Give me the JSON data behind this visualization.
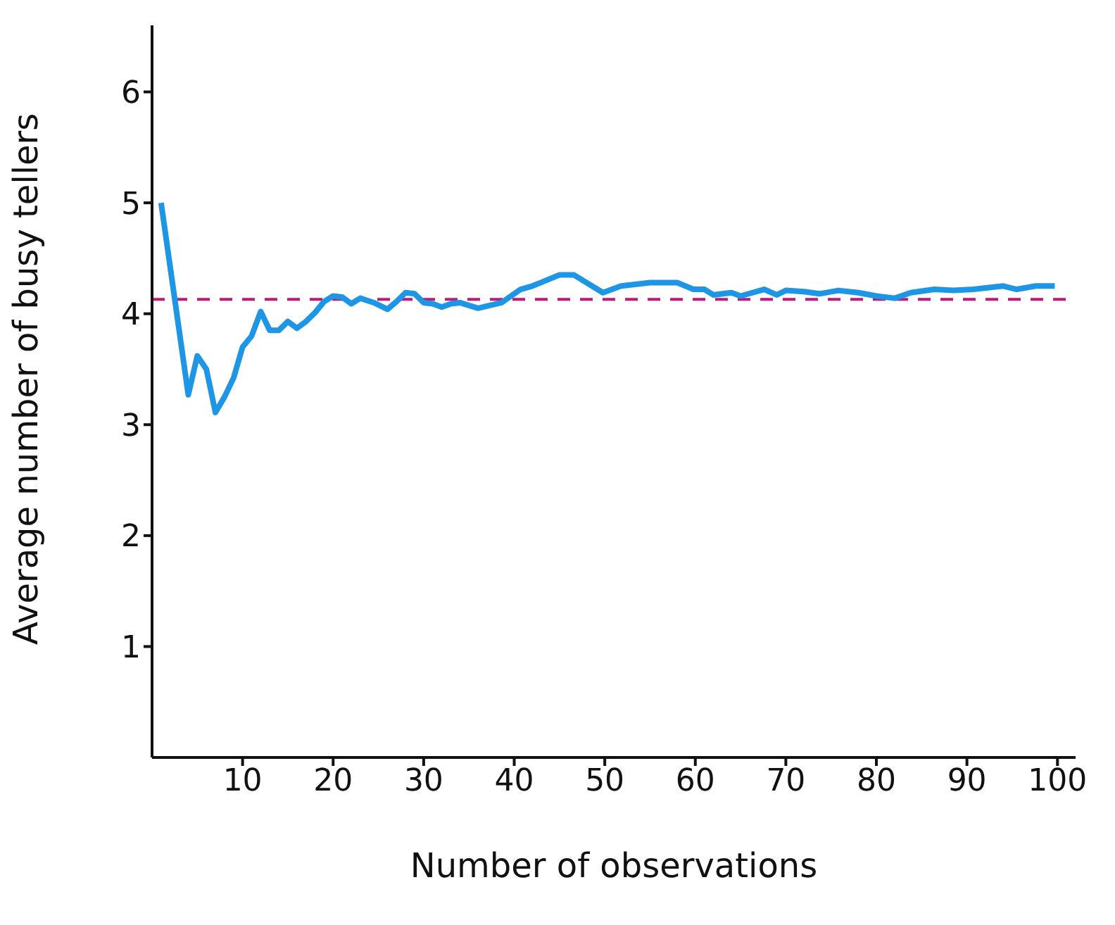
{
  "chart_data": {
    "type": "line",
    "xlabel": "Number of observations",
    "ylabel": "Average number of busy tellers",
    "x": [
      1,
      4,
      5,
      6,
      7,
      8,
      9,
      10,
      11,
      12,
      13,
      14,
      15,
      16,
      17,
      18,
      19,
      20,
      21,
      22,
      23,
      24.5,
      26,
      27,
      28,
      29,
      30,
      31,
      32,
      33,
      34,
      36,
      38.6,
      40.7,
      42,
      45,
      46.6,
      49.8,
      51.8,
      55,
      58,
      59.8,
      61,
      62,
      64,
      65,
      67.6,
      69,
      70,
      72,
      73.7,
      75.8,
      78,
      80,
      82,
      83.8,
      86.4,
      88.5,
      90.7,
      94,
      95.5,
      97.6,
      99.7
    ],
    "series": [
      {
        "color": "#1e96e6",
        "values": [
          5.0,
          3.27,
          3.62,
          3.5,
          3.11,
          3.25,
          3.42,
          3.7,
          3.8,
          4.02,
          3.85,
          3.85,
          3.93,
          3.87,
          3.93,
          4.01,
          4.11,
          4.16,
          4.15,
          4.09,
          4.14,
          4.1,
          4.04,
          4.11,
          4.19,
          4.18,
          4.1,
          4.09,
          4.06,
          4.09,
          4.1,
          4.05,
          4.1,
          4.22,
          4.25,
          4.35,
          4.35,
          4.19,
          4.25,
          4.28,
          4.28,
          4.22,
          4.22,
          4.17,
          4.19,
          4.16,
          4.22,
          4.17,
          4.21,
          4.2,
          4.18,
          4.21,
          4.19,
          4.16,
          4.14,
          4.19,
          4.22,
          4.21,
          4.22,
          4.25,
          4.22,
          4.25,
          4.25
        ]
      }
    ],
    "ref_lines": [
      {
        "axis": "y",
        "value": 4.13,
        "color": "#c0187a",
        "line_style": "dashed"
      }
    ],
    "xlim": [
      0,
      102
    ],
    "ylim": [
      0,
      6.6
    ],
    "xticks": [
      10,
      20,
      30,
      40,
      50,
      60,
      70,
      80,
      90,
      100
    ],
    "yticks": [
      1,
      2,
      3,
      4,
      5,
      6
    ],
    "grid": false,
    "legend": false,
    "marker": "none",
    "line_style": "solid"
  }
}
